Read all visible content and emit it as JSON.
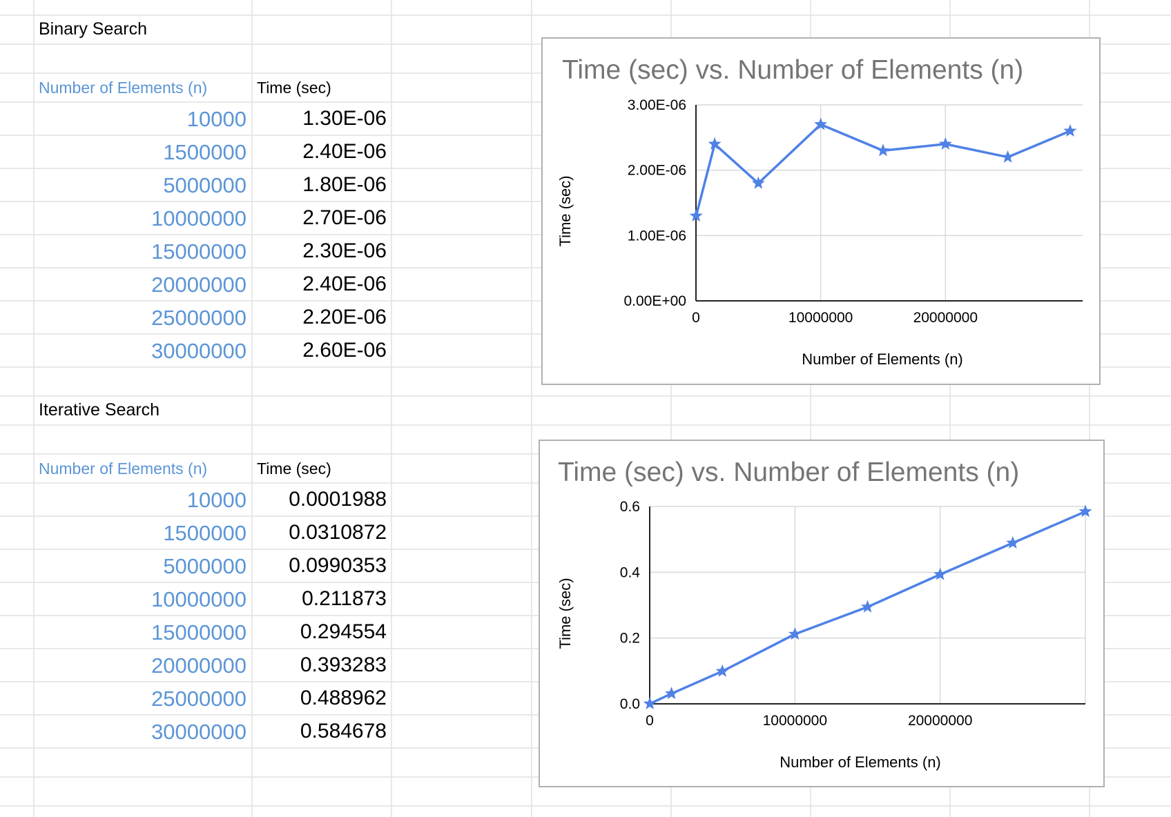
{
  "binary": {
    "title": "Binary Search",
    "header_n": "Number of Elements (n)",
    "header_t": "Time (sec)",
    "rows": [
      {
        "n": "10000",
        "t": "1.30E-06"
      },
      {
        "n": "1500000",
        "t": "2.40E-06"
      },
      {
        "n": "5000000",
        "t": "1.80E-06"
      },
      {
        "n": "10000000",
        "t": "2.70E-06"
      },
      {
        "n": "15000000",
        "t": "2.30E-06"
      },
      {
        "n": "20000000",
        "t": "2.40E-06"
      },
      {
        "n": "25000000",
        "t": "2.20E-06"
      },
      {
        "n": "30000000",
        "t": "2.60E-06"
      }
    ]
  },
  "iterative": {
    "title": "Iterative Search",
    "header_n": "Number of Elements (n)",
    "header_t": "Time (sec)",
    "rows": [
      {
        "n": "10000",
        "t": "0.0001988"
      },
      {
        "n": "1500000",
        "t": "0.0310872"
      },
      {
        "n": "5000000",
        "t": "0.0990353"
      },
      {
        "n": "10000000",
        "t": "0.211873"
      },
      {
        "n": "15000000",
        "t": "0.294554"
      },
      {
        "n": "20000000",
        "t": "0.393283"
      },
      {
        "n": "25000000",
        "t": "0.488962"
      },
      {
        "n": "30000000",
        "t": "0.584678"
      }
    ]
  },
  "colors": {
    "series": "#4f81e6",
    "header_blue": "#5b95d6",
    "title_gray": "#757575",
    "grid": "#d9d9d9"
  },
  "chart_data": [
    {
      "type": "line",
      "title": "Time (sec) vs. Number of Elements (n)",
      "xlabel": "Number of Elements (n)",
      "ylabel": "Time (sec)",
      "marker": "star",
      "x": [
        10000,
        1500000,
        5000000,
        10000000,
        15000000,
        20000000,
        25000000,
        30000000
      ],
      "series": [
        {
          "values": [
            1.3e-06,
            2.4e-06,
            1.8e-06,
            2.7e-06,
            2.3e-06,
            2.4e-06,
            2.2e-06,
            2.6e-06
          ]
        }
      ],
      "xlim": [
        0,
        31000000
      ],
      "ylim": [
        0,
        3e-06
      ],
      "xticks": [
        0,
        10000000,
        20000000
      ],
      "xtick_labels": [
        "0",
        "10000000",
        "20000000"
      ],
      "yticks": [
        0,
        1e-06,
        2e-06,
        3e-06
      ],
      "ytick_labels": [
        "0.00E+00",
        "1.00E-06",
        "2.00E-06",
        "3.00E-06"
      ],
      "grid": true
    },
    {
      "type": "line",
      "title": "Time (sec) vs. Number of Elements (n)",
      "xlabel": "Number of Elements (n)",
      "ylabel": "Time (sec)",
      "marker": "star",
      "x": [
        10000,
        1500000,
        5000000,
        10000000,
        15000000,
        20000000,
        25000000,
        30000000
      ],
      "series": [
        {
          "values": [
            0.0001988,
            0.0310872,
            0.0990353,
            0.211873,
            0.294554,
            0.393283,
            0.488962,
            0.584678
          ]
        }
      ],
      "xlim": [
        0,
        30000000
      ],
      "ylim": [
        0,
        0.6
      ],
      "xticks": [
        0,
        10000000,
        20000000
      ],
      "xtick_labels": [
        "0",
        "10000000",
        "20000000"
      ],
      "yticks": [
        0,
        0.2,
        0.4,
        0.6
      ],
      "ytick_labels": [
        "0.0",
        "0.2",
        "0.4",
        "0.6"
      ],
      "grid": true
    }
  ]
}
